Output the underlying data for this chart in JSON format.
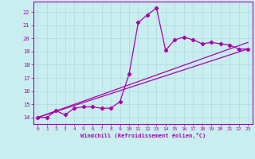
{
  "xlabel": "Windchill (Refroidissement éolien,°C)",
  "xlim": [
    -0.5,
    23.5
  ],
  "ylim": [
    13.5,
    22.8
  ],
  "xticks": [
    0,
    1,
    2,
    3,
    4,
    5,
    6,
    7,
    8,
    9,
    10,
    11,
    12,
    13,
    14,
    15,
    16,
    17,
    18,
    19,
    20,
    21,
    22,
    23
  ],
  "yticks": [
    14,
    15,
    16,
    17,
    18,
    19,
    20,
    21,
    22
  ],
  "bg_color": "#c8eef0",
  "grid_color": "#b0d8da",
  "line_color": "#aa00aa",
  "main_x": [
    0,
    1,
    2,
    3,
    4,
    5,
    6,
    7,
    8,
    9,
    10,
    11,
    12,
    13,
    14,
    15,
    16,
    17,
    18,
    19,
    20,
    21,
    22,
    23
  ],
  "main_y": [
    14.0,
    14.0,
    14.5,
    14.2,
    14.7,
    14.8,
    14.8,
    14.7,
    14.7,
    15.2,
    17.3,
    21.2,
    21.8,
    22.3,
    19.1,
    19.9,
    20.1,
    19.9,
    19.6,
    19.7,
    19.6,
    19.5,
    19.2,
    19.2
  ],
  "straight_line1": [
    [
      0,
      23
    ],
    [
      14.0,
      19.2
    ]
  ],
  "straight_line2": [
    [
      0,
      23
    ],
    [
      14.0,
      19.7
    ]
  ]
}
